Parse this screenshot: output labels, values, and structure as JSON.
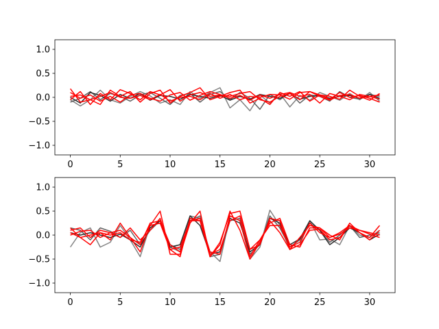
{
  "chart_data": [
    {
      "type": "line",
      "xlim": [
        -1.55,
        32.55
      ],
      "ylim": [
        -1.2,
        1.2
      ],
      "x_ticks": [
        0,
        5,
        10,
        15,
        20,
        25,
        30
      ],
      "y_ticks": [
        -1.0,
        -0.5,
        0.0,
        0.5,
        1.0
      ],
      "x_tick_labels": [
        "0",
        "5",
        "10",
        "15",
        "20",
        "25",
        "30"
      ],
      "y_tick_labels": [
        "−1.0",
        "−0.5",
        "0.0",
        "0.5",
        "1.0"
      ],
      "grid": false,
      "x": [
        0,
        1,
        2,
        3,
        4,
        5,
        6,
        7,
        8,
        9,
        10,
        11,
        12,
        13,
        14,
        15,
        16,
        17,
        18,
        19,
        20,
        21,
        22,
        23,
        24,
        25,
        26,
        27,
        28,
        29,
        30,
        31
      ],
      "series": [
        {
          "color": "#808080",
          "values": [
            -0.05,
            -0.18,
            -0.05,
            0.15,
            -0.05,
            -0.12,
            0.02,
            0.12,
            0.03,
            -0.12,
            -0.05,
            -0.15,
            0.12,
            -0.02,
            0.1,
            0.2,
            -0.22,
            -0.05,
            -0.28,
            0.05,
            -0.12,
            0.08,
            -0.2,
            0.04,
            -0.06,
            0.1,
            0.02,
            -0.06,
            0.08,
            -0.05,
            0.1,
            -0.08
          ]
        },
        {
          "color": "#606060",
          "values": [
            -0.1,
            -0.02,
            0.12,
            -0.05,
            0.08,
            0.02,
            -0.08,
            0.05,
            0.1,
            -0.02,
            -0.15,
            0.04,
            0.08,
            -0.1,
            0.06,
            0.12,
            -0.05,
            0.1,
            -0.02,
            -0.25,
            0.06,
            -0.05,
            0.1,
            -0.12,
            0.05,
            0.02,
            -0.08,
            0.12,
            0.0,
            -0.04,
            0.06,
            0.02
          ]
        },
        {
          "color": "#2a2a2a",
          "values": [
            0.0,
            -0.12,
            0.1,
            0.04,
            -0.08,
            0.06,
            -0.02,
            0.08,
            -0.06,
            0.04,
            0.02,
            -0.04,
            0.06,
            0.02,
            -0.02,
            0.04,
            -0.06,
            0.02,
            -0.04,
            0.06,
            0.02,
            -0.02,
            0.08,
            -0.04,
            0.02,
            0.04,
            -0.02,
            0.02,
            0.04,
            -0.02,
            0.06,
            -0.02
          ]
        },
        {
          "color": "#ff0000",
          "values": [
            0.18,
            -0.1,
            -0.05,
            -0.15,
            0.15,
            0.02,
            0.12,
            -0.1,
            0.08,
            0.15,
            -0.12,
            0.02,
            0.1,
            0.2,
            -0.05,
            0.02,
            0.1,
            0.15,
            -0.12,
            -0.02,
            -0.15,
            0.1,
            0.02,
            0.12,
            -0.08,
            0.05,
            0.02,
            -0.04,
            0.15,
            0.02,
            -0.06,
            0.08
          ]
        },
        {
          "color": "#ff0000",
          "values": [
            -0.05,
            0.12,
            -0.15,
            0.08,
            -0.05,
            0.16,
            0.08,
            -0.05,
            0.12,
            0.05,
            0.16,
            -0.08,
            0.05,
            0.1,
            0.02,
            0.05,
            0.02,
            0.08,
            0.12,
            -0.05,
            -0.1,
            0.02,
            0.08,
            -0.05,
            0.12,
            0.05,
            -0.04,
            0.1,
            0.0,
            0.04,
            -0.02,
            -0.1
          ]
        },
        {
          "color": "#ff0000",
          "values": [
            0.1,
            -0.02,
            0.05,
            -0.08,
            0.02,
            -0.1,
            0.05,
            0.08,
            -0.02,
            -0.08,
            0.05,
            0.1,
            -0.06,
            0.04,
            0.12,
            0.06,
            -0.02,
            0.04,
            -0.06,
            0.05,
            -0.02,
            0.06,
            0.1,
            0.02,
            0.06,
            -0.12,
            0.08,
            0.02,
            -0.05,
            0.06,
            0.02,
            0.05
          ]
        },
        {
          "color": "#ff0000",
          "values": [
            0.02,
            0.05,
            -0.05,
            0.02,
            0.1,
            0.0,
            -0.02,
            0.04,
            -0.05,
            0.06,
            -0.08,
            0.0,
            0.02,
            -0.05,
            0.08,
            -0.02,
            0.06,
            -0.05,
            0.02,
            0.0,
            0.06,
            0.05,
            -0.04,
            0.1,
            0.12,
            0.02,
            -0.06,
            0.04,
            0.06,
            -0.02,
            0.02,
            -0.04
          ]
        }
      ]
    },
    {
      "type": "line",
      "xlim": [
        -1.55,
        32.55
      ],
      "ylim": [
        -1.2,
        1.2
      ],
      "x_ticks": [
        0,
        5,
        10,
        15,
        20,
        25,
        30
      ],
      "y_ticks": [
        -1.0,
        -0.5,
        0.0,
        0.5,
        1.0
      ],
      "x_tick_labels": [
        "0",
        "5",
        "10",
        "15",
        "20",
        "25",
        "30"
      ],
      "y_tick_labels": [
        "−1.0",
        "−0.5",
        "0.0",
        "0.5",
        "1.0"
      ],
      "grid": false,
      "x": [
        0,
        1,
        2,
        3,
        4,
        5,
        6,
        7,
        8,
        9,
        10,
        11,
        12,
        13,
        14,
        15,
        16,
        17,
        18,
        19,
        20,
        21,
        22,
        23,
        24,
        25,
        26,
        27,
        28,
        29,
        30,
        31
      ],
      "series": [
        {
          "color": "#808080",
          "values": [
            -0.25,
            0.05,
            0.15,
            -0.25,
            -0.15,
            0.2,
            -0.1,
            -0.45,
            0.2,
            0.25,
            -0.25,
            -0.35,
            0.4,
            0.35,
            -0.35,
            -0.55,
            0.4,
            0.3,
            -0.5,
            -0.25,
            0.52,
            0.2,
            -0.3,
            -0.2,
            0.3,
            -0.1,
            -0.08,
            -0.2,
            0.2,
            0.0,
            -0.05,
            0.1
          ]
        },
        {
          "color": "#606060",
          "values": [
            0.15,
            0.1,
            -0.1,
            0.15,
            0.08,
            -0.05,
            0.1,
            -0.2,
            0.1,
            0.3,
            -0.2,
            -0.3,
            0.3,
            0.4,
            -0.45,
            -0.4,
            0.3,
            0.35,
            -0.4,
            -0.2,
            0.4,
            0.15,
            -0.25,
            -0.1,
            0.25,
            0.1,
            -0.15,
            0.0,
            0.2,
            -0.05,
            0.0,
            0.05
          ]
        },
        {
          "color": "#2a2a2a",
          "values": [
            0.05,
            0.0,
            0.05,
            0.0,
            -0.05,
            0.02,
            -0.1,
            -0.25,
            0.15,
            0.3,
            -0.25,
            -0.2,
            0.4,
            0.2,
            -0.4,
            -0.35,
            0.35,
            0.25,
            -0.35,
            -0.2,
            0.35,
            0.25,
            -0.2,
            -0.08,
            0.3,
            0.1,
            -0.2,
            -0.05,
            0.15,
            0.05,
            -0.1,
            0.02
          ]
        },
        {
          "color": "#ff0000",
          "values": [
            0.15,
            -0.05,
            -0.2,
            0.05,
            -0.1,
            0.25,
            -0.05,
            -0.35,
            0.2,
            0.5,
            -0.4,
            -0.4,
            0.25,
            0.5,
            -0.45,
            -0.2,
            0.5,
            0.1,
            -0.5,
            -0.15,
            0.3,
            0.05,
            -0.3,
            -0.05,
            0.2,
            0.15,
            -0.05,
            0.05,
            0.2,
            0.1,
            0.02,
            -0.05
          ]
        },
        {
          "color": "#ff0000",
          "values": [
            0.1,
            0.15,
            -0.05,
            0.1,
            0.05,
            -0.05,
            0.15,
            -0.1,
            0.1,
            0.35,
            -0.3,
            -0.45,
            0.35,
            0.3,
            -0.45,
            -0.15,
            0.45,
            0.5,
            -0.3,
            -0.1,
            0.25,
            0.35,
            -0.2,
            -0.25,
            0.15,
            0.15,
            0.0,
            -0.1,
            0.25,
            0.05,
            -0.05,
            0.2
          ]
        },
        {
          "color": "#ff0000",
          "values": [
            0.0,
            0.08,
            0.1,
            -0.05,
            0.05,
            0.1,
            -0.05,
            -0.2,
            0.25,
            0.3,
            -0.2,
            -0.35,
            0.3,
            0.3,
            -0.35,
            -0.4,
            0.4,
            0.3,
            -0.45,
            -0.1,
            0.2,
            0.2,
            -0.25,
            -0.15,
            0.25,
            0.05,
            -0.05,
            0.02,
            0.15,
            0.1,
            0.05,
            0.0
          ]
        },
        {
          "color": "#ff0000",
          "values": [
            0.05,
            -0.05,
            0.0,
            0.05,
            0.0,
            0.05,
            -0.1,
            -0.15,
            0.2,
            0.25,
            -0.3,
            -0.25,
            0.3,
            0.35,
            -0.4,
            -0.3,
            0.3,
            0.4,
            -0.3,
            -0.2,
            0.35,
            0.3,
            -0.3,
            -0.2,
            0.1,
            0.12,
            -0.1,
            -0.05,
            0.2,
            0.05,
            -0.1,
            0.1
          ]
        }
      ]
    }
  ]
}
